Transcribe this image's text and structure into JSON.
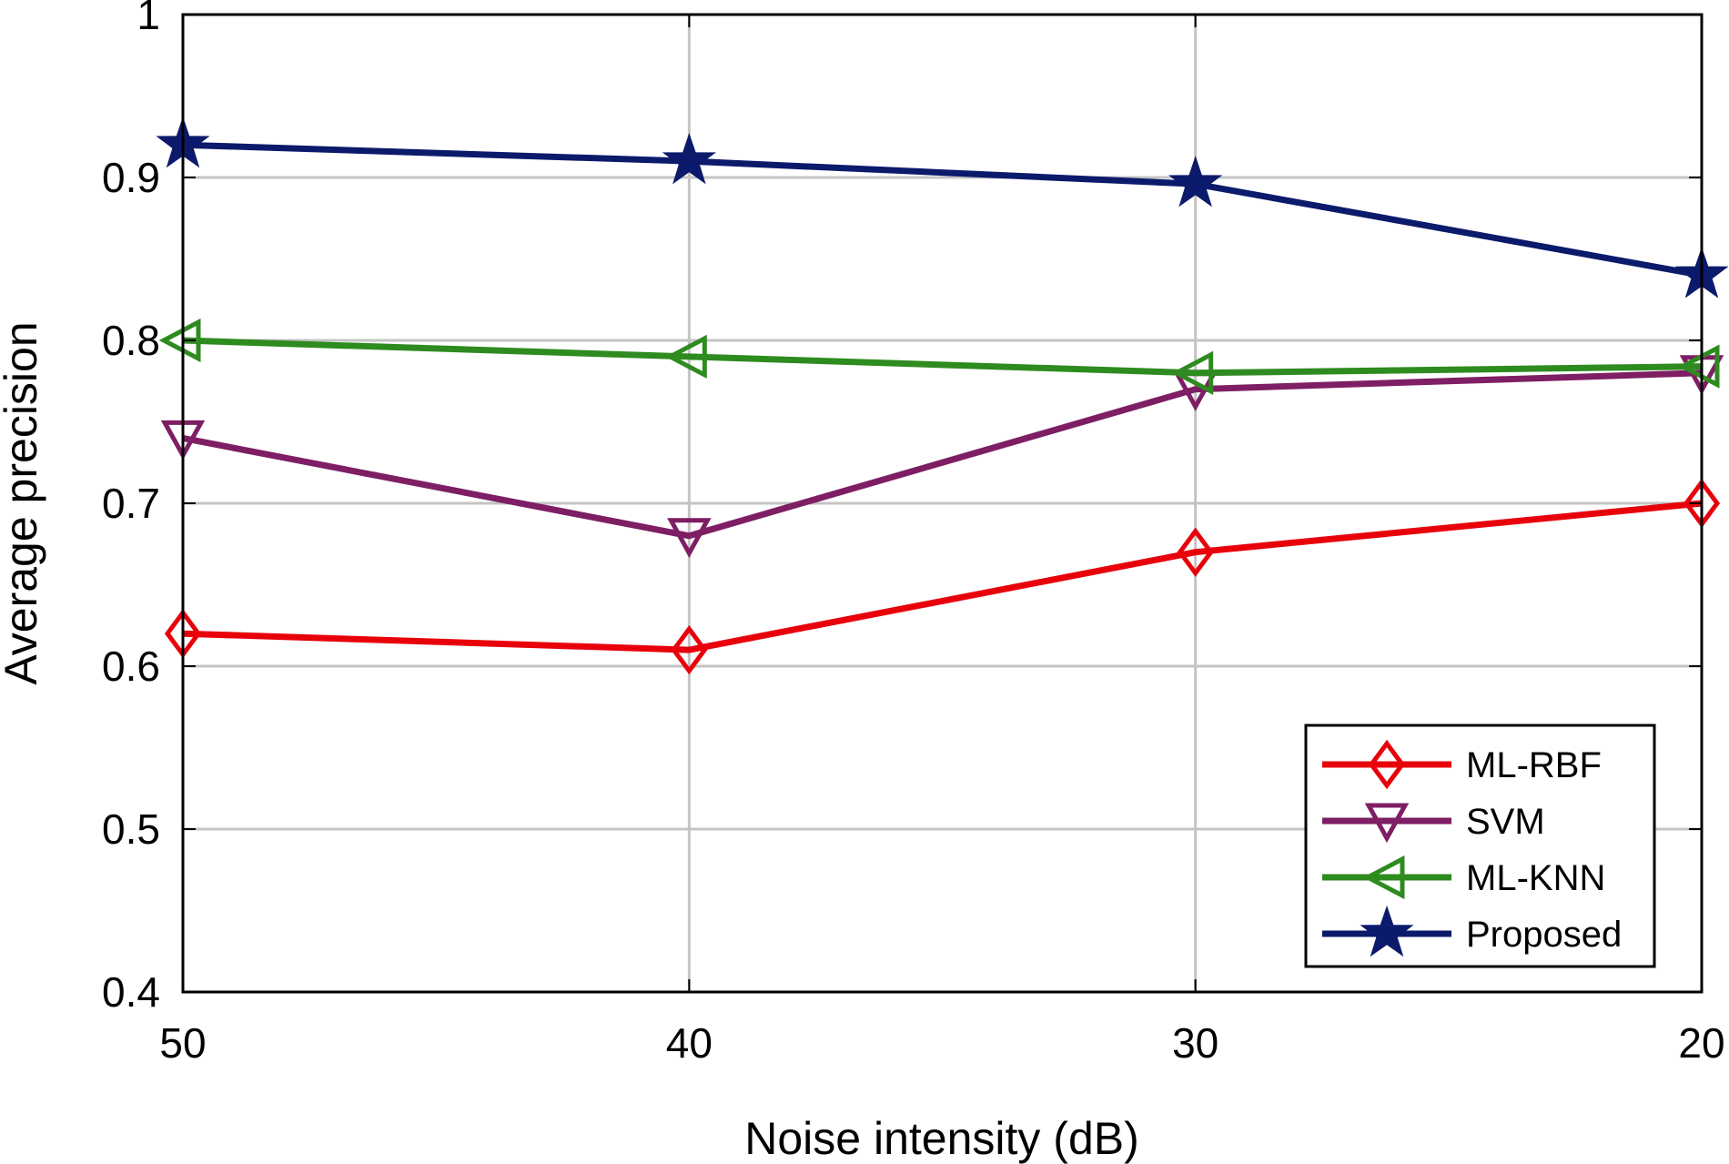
{
  "chart_data": {
    "type": "line",
    "title": "",
    "xlabel": "Noise intensity (dB)",
    "ylabel": "Average precision",
    "x": [
      50,
      40,
      30,
      20
    ],
    "x_tick_labels": [
      "50",
      "40",
      "30",
      "20"
    ],
    "y_tick_labels": [
      "0.4",
      "0.5",
      "0.6",
      "0.7",
      "0.8",
      "0.9",
      "1"
    ],
    "y_ticks": [
      0.4,
      0.5,
      0.6,
      0.7,
      0.8,
      0.9,
      1.0
    ],
    "ylim": [
      0.4,
      1.0
    ],
    "grid": true,
    "legend_position": "bottom-right",
    "series": [
      {
        "name": "ML-RBF",
        "values": [
          0.62,
          0.61,
          0.67,
          0.7
        ],
        "color": "#e8000b",
        "marker": "diamond"
      },
      {
        "name": "SVM",
        "values": [
          0.74,
          0.68,
          0.77,
          0.78
        ],
        "color": "#7e1e64",
        "marker": "triangle-down"
      },
      {
        "name": "ML-KNN",
        "values": [
          0.8,
          0.79,
          0.78,
          0.784
        ],
        "color": "#2e8b1f",
        "marker": "triangle-left"
      },
      {
        "name": "Proposed",
        "values": [
          0.92,
          0.91,
          0.896,
          0.84
        ],
        "color": "#0c1a6b",
        "marker": "star"
      }
    ]
  }
}
